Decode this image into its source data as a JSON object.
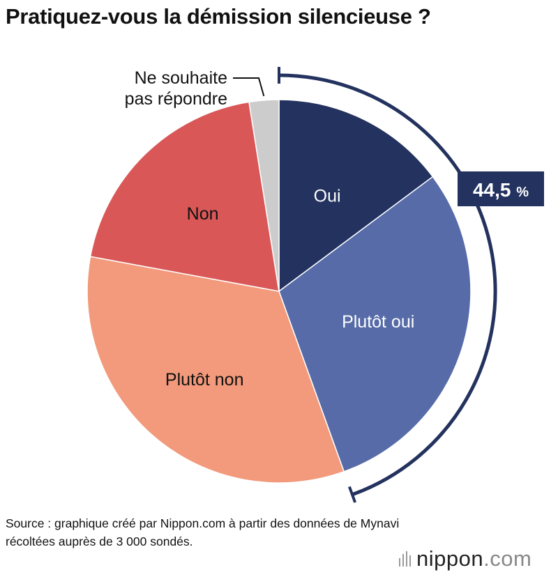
{
  "title": "Pratiquez-vous la démission silencieuse ?",
  "chart_data": {
    "type": "pie",
    "slices": [
      {
        "label": "Oui",
        "value": 14.8,
        "color": "#23325e",
        "text_color": "#ffffff"
      },
      {
        "label": "Plutôt oui",
        "value": 29.7,
        "color": "#566ba8",
        "text_color": "#ffffff"
      },
      {
        "label": "Plutôt non",
        "value": 33.4,
        "color": "#f29a7b",
        "text_color": "#111111"
      },
      {
        "label": "Non",
        "value": 19.6,
        "color": "#d95757",
        "text_color": "#111111"
      },
      {
        "label": "Ne souhaite pas répondre",
        "label_lines": [
          "Ne souhaite",
          "pas répondre"
        ],
        "value": 2.5,
        "color": "#cccccc",
        "text_color": "#111111"
      }
    ],
    "bracket_total": "44,5",
    "bracket_unit": "%",
    "bracket_color": "#23325e"
  },
  "source": "Source : graphique créé par Nippon.com à partir des données de Mynavi récoltées auprès de 3 000 sondés.",
  "logo": {
    "name": "nippon",
    "dot": ".",
    "tld": "com"
  }
}
